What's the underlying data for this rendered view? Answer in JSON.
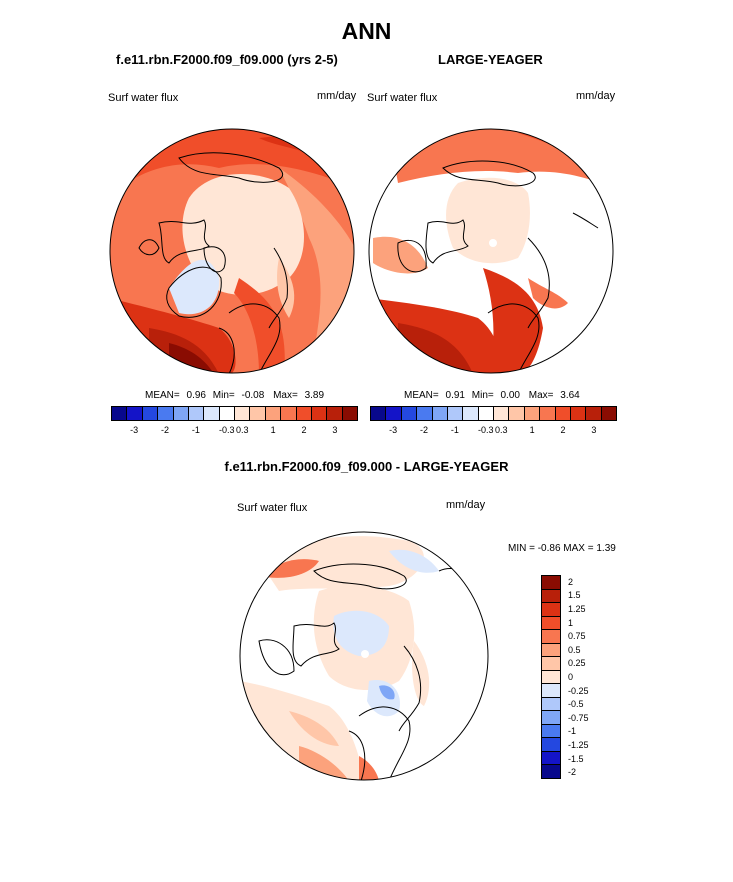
{
  "title": "ANN",
  "panels": {
    "left": {
      "case": "f.e11.rbn.F2000.f09_f09.000 (yrs 2-5)",
      "label": "Surf water flux",
      "units": "mm/day",
      "mean_label": "MEAN=",
      "mean": "0.96",
      "min_label": "Min=",
      "min": "-0.08",
      "max_label": "Max=",
      "max": "3.89"
    },
    "right": {
      "case": "LARGE-YEAGER",
      "label": "Surf water flux",
      "units": "mm/day",
      "mean_label": "MEAN=",
      "mean": "0.91",
      "min_label": "Min=",
      "min": "0.00",
      "max_label": "Max=",
      "max": "3.64"
    },
    "diff": {
      "title": "f.e11.rbn.F2000.f09_f09.000 - LARGE-YEAGER",
      "label": "Surf water flux",
      "units": "mm/day",
      "minmax": "MIN =  -0.86 MAX =   1.39"
    }
  },
  "colorbar_top": {
    "ticks": [
      "-3",
      "-2",
      "-1",
      "-0.3",
      "0.3",
      "1",
      "2",
      "3"
    ],
    "colors": [
      "#08088c",
      "#1414c8",
      "#2448e0",
      "#4a7af0",
      "#7fa6f6",
      "#afc8fa",
      "#dce8fc",
      "#ffffff",
      "#ffe6d6",
      "#ffc6a8",
      "#fca27c",
      "#f87650",
      "#f04e2a",
      "#dc3214",
      "#b8200a",
      "#8a0c02"
    ]
  },
  "colorbar_diff": {
    "labels": [
      "2",
      "1.5",
      "1.25",
      "1",
      "0.75",
      "0.5",
      "0.25",
      "0",
      "-0.25",
      "-0.5",
      "-0.75",
      "-1",
      "-1.25",
      "-1.5",
      "-2"
    ],
    "colors": [
      "#8a0c02",
      "#b8200a",
      "#dc3214",
      "#f04e2a",
      "#f87650",
      "#fca27c",
      "#ffc6a8",
      "#ffe6d6",
      "#dce8fc",
      "#afc8fa",
      "#7fa6f6",
      "#4a7af0",
      "#2448e0",
      "#1414c8",
      "#08088c"
    ]
  }
}
